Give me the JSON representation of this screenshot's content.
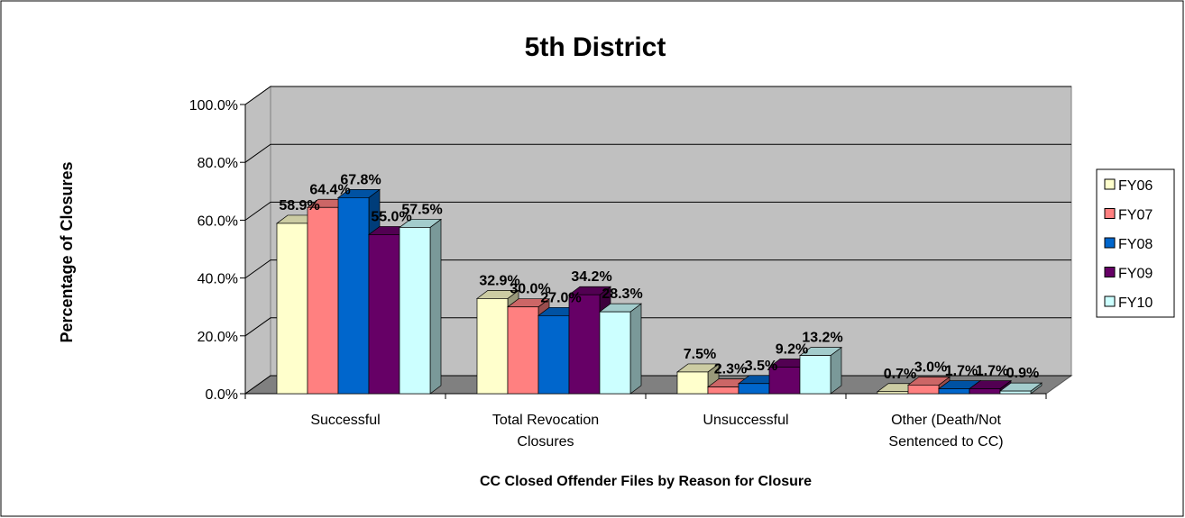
{
  "chart_data": {
    "type": "bar3d",
    "title": "5th District",
    "y_label": "Percentage of Closures",
    "x_label": "CC Closed Offender Files by Reason for Closure",
    "categories": [
      "Successful",
      "Total Revocation Closures",
      "Unsuccessful",
      "Other (Death/Not Sentenced to CC)"
    ],
    "series": [
      {
        "name": "FY06",
        "color": "#ffffcc",
        "values": [
          58.9,
          32.9,
          7.5,
          0.7
        ],
        "value_labels": [
          "58.9%",
          "32.9%",
          "7.5%",
          "0.7%"
        ]
      },
      {
        "name": "FY07",
        "color": "#ff8080",
        "values": [
          64.4,
          30.0,
          2.3,
          3.0
        ],
        "value_labels": [
          "64.4%",
          "30.0%",
          "2.3%",
          "3.0%"
        ]
      },
      {
        "name": "FY08",
        "color": "#0066cc",
        "values": [
          67.8,
          27.0,
          3.5,
          1.7
        ],
        "value_labels": [
          "67.8%",
          "27.0%",
          "3.5%",
          "1.7%"
        ]
      },
      {
        "name": "FY09",
        "color": "#660066",
        "values": [
          55.0,
          34.2,
          9.2,
          1.7
        ],
        "value_labels": [
          "55.0%",
          "34.2%",
          "9.2%",
          "1.7%"
        ]
      },
      {
        "name": "FY10",
        "color": "#ccffff",
        "values": [
          57.5,
          28.3,
          13.2,
          0.9
        ],
        "value_labels": [
          "57.5%",
          "28.3%",
          "13.2%",
          "0.9%"
        ]
      }
    ],
    "ylim": [
      0,
      100
    ],
    "yticks": [
      {
        "value": 0,
        "label": "0.0%"
      },
      {
        "value": 20,
        "label": "20.0%"
      },
      {
        "value": 40,
        "label": "40.0%"
      },
      {
        "value": 60,
        "label": "60.0%"
      },
      {
        "value": 80,
        "label": "80.0%"
      },
      {
        "value": 100,
        "label": "100.0%"
      }
    ],
    "grid": true,
    "legend": "right"
  }
}
